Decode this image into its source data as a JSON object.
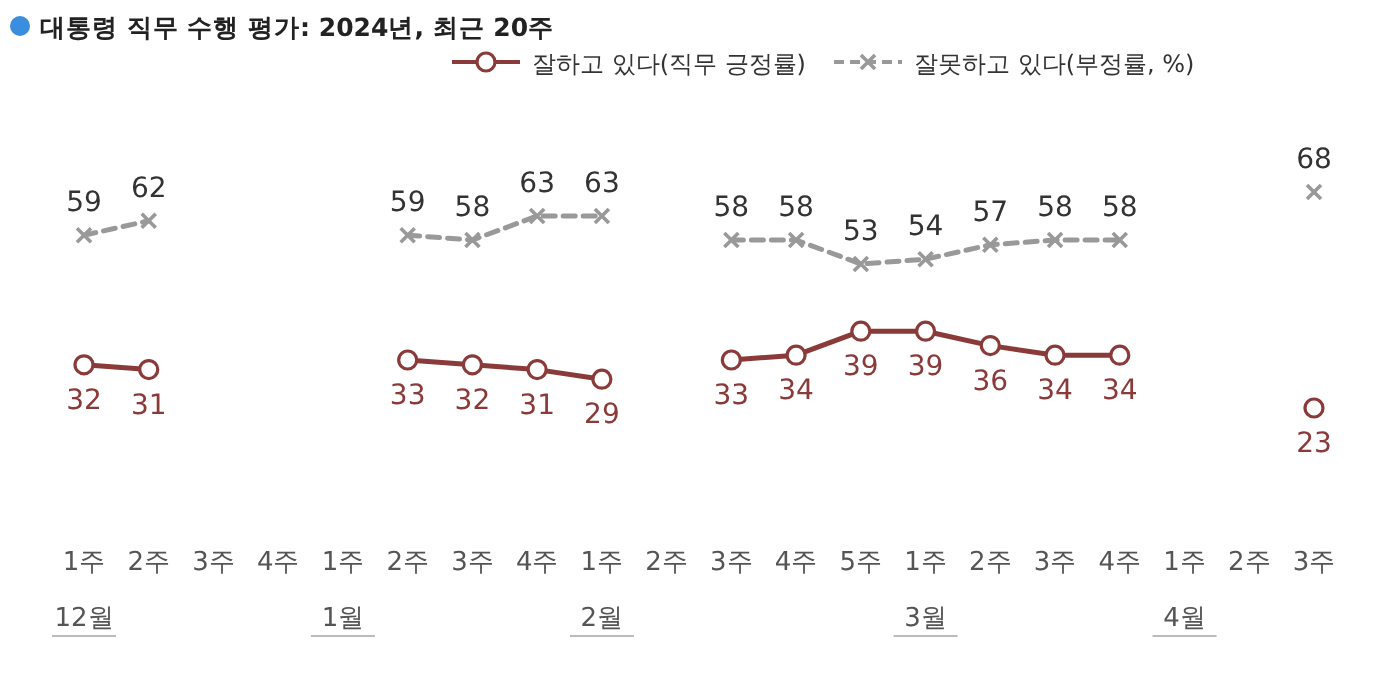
{
  "chart_data": {
    "type": "line",
    "title": "대통령 직무 수행 평가: 2024년, 최근 20주",
    "categories": [
      "1주",
      "2주",
      "3주",
      "4주",
      "1주",
      "2주",
      "3주",
      "4주",
      "1주",
      "2주",
      "3주",
      "4주",
      "5주",
      "1주",
      "2주",
      "3주",
      "4주",
      "1주",
      "2주",
      "3주"
    ],
    "annotations": [
      "12월",
      "1월",
      "2월",
      "3월",
      "4월"
    ],
    "series": [
      {
        "name": "잘하고 있다(직무 긍정률)",
        "color": "#8b3a3a",
        "marker": "circle",
        "line_style": "solid",
        "values": [
          32,
          31,
          null,
          null,
          null,
          33,
          32,
          31,
          29,
          null,
          33,
          34,
          39,
          39,
          36,
          34,
          34,
          null,
          null,
          23
        ]
      },
      {
        "name": "잘못하고 있다(부정률, %)",
        "color": "#999999",
        "marker": "cross",
        "line_style": "dashed",
        "values": [
          59,
          62,
          null,
          null,
          null,
          59,
          58,
          63,
          63,
          null,
          58,
          58,
          53,
          54,
          57,
          58,
          58,
          null,
          null,
          68
        ]
      }
    ],
    "data_labels": true,
    "legend": "top right"
  }
}
